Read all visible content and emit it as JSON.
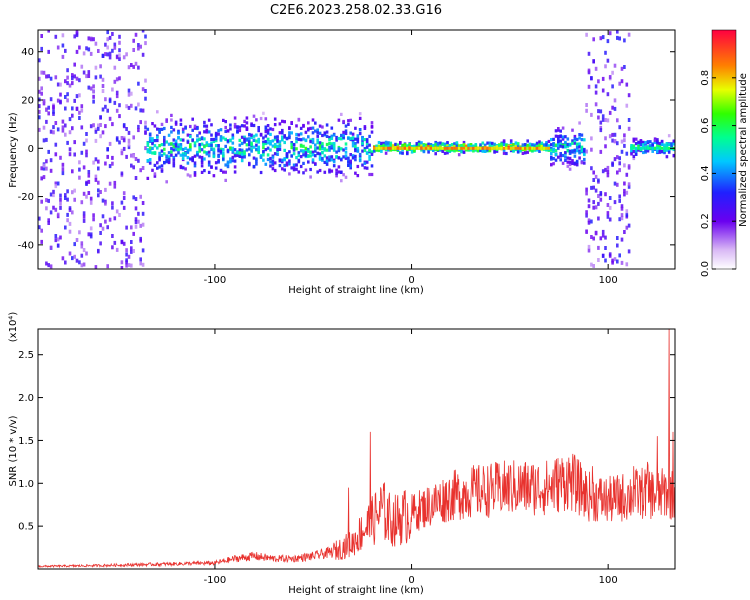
{
  "title": "C2E6.2023.258.02.33.G16",
  "colors": {
    "snr_line": "#e8322e",
    "background": "#ffffff",
    "axes": "#000000"
  },
  "chart_data": [
    {
      "type": "heatmap",
      "xlabel": "Height of straight line (km)",
      "ylabel": "Frequency (Hz)",
      "xlim": [
        -190,
        134
      ],
      "ylim": [
        -50,
        49
      ],
      "xticks": [
        -100,
        0,
        100
      ],
      "xtick_labels": [
        "-100",
        "0",
        "100"
      ],
      "yticks": [
        -40,
        -20,
        0,
        20,
        40
      ],
      "ytick_labels": [
        "-40",
        "-20",
        "0",
        "20",
        "40"
      ],
      "colorbar": {
        "label": "Normalized spectral amplitude",
        "ticks": [
          0.0,
          0.2,
          0.4,
          0.6,
          0.8
        ],
        "tick_labels": [
          "0.0",
          "0.2",
          "0.4",
          "0.6",
          "0.8"
        ],
        "range": [
          0,
          1
        ],
        "colormap": "rainbow (white-violet-blue-cyan-green-yellow-red)"
      },
      "regions": [
        {
          "x_range": [
            -190,
            -136
          ],
          "description_values": {
            "freq_spread": 49,
            "max_amp": 0.3
          }
        },
        {
          "x_range": [
            -136,
            -20
          ],
          "description_values": {
            "freq_spread": 15,
            "max_amp": 0.6
          }
        },
        {
          "x_range": [
            -20,
            70
          ],
          "description_values": {
            "freq_spread": 3,
            "max_amp": 0.9
          }
        },
        {
          "x_range": [
            70,
            88
          ],
          "description_values": {
            "freq_spread": 10,
            "max_amp": 0.6
          }
        },
        {
          "x_range": [
            88,
            110
          ],
          "description_values": {
            "freq_spread": 49,
            "max_amp": 0.3
          }
        },
        {
          "x_range": [
            110,
            134
          ],
          "description_values": {
            "freq_spread": 5,
            "max_amp": 0.6
          }
        }
      ]
    },
    {
      "type": "line",
      "xlabel": "Height of straight line (km)",
      "ylabel": "SNR (10 * v/v)",
      "y_multiplier_label": "(x10⁴)",
      "xlim": [
        -190,
        134
      ],
      "ylim": [
        0,
        2.8
      ],
      "xticks": [
        -100,
        0,
        100
      ],
      "xtick_labels": [
        "-100",
        "0",
        "100"
      ],
      "yticks": [
        0.5,
        1.0,
        1.5,
        2.0,
        2.5
      ],
      "ytick_labels": [
        "0.5",
        "1.0",
        "1.5",
        "2.0",
        "2.5"
      ],
      "series": [
        {
          "x": [
            -190,
            -160,
            -140,
            -120,
            -100,
            -90,
            -80,
            -70,
            -60,
            -50,
            -40,
            -30,
            -25,
            -20,
            -15,
            -10,
            0,
            10,
            20,
            30,
            40,
            50,
            60,
            70,
            75,
            80,
            85,
            90,
            100,
            110,
            120,
            125,
            130,
            134
          ],
          "y": [
            0.03,
            0.04,
            0.05,
            0.06,
            0.07,
            0.12,
            0.15,
            0.12,
            0.12,
            0.15,
            0.2,
            0.3,
            0.45,
            0.55,
            0.7,
            0.55,
            0.65,
            0.75,
            0.85,
            0.9,
            0.92,
            0.95,
            0.95,
            0.95,
            1.0,
            1.05,
            0.95,
            0.85,
            0.8,
            0.85,
            0.9,
            0.85,
            0.9,
            0.85
          ],
          "spikes": [
            {
              "x": -21,
              "y": 1.6
            },
            {
              "x": -32,
              "y": 0.95
            },
            {
              "x": 80,
              "y": 1.3
            },
            {
              "x": 92,
              "y": 1.2
            },
            {
              "x": 113,
              "y": 1.2
            },
            {
              "x": 120,
              "y": 1.25
            },
            {
              "x": 125,
              "y": 1.55
            },
            {
              "x": 131,
              "y": 2.8
            },
            {
              "x": 133,
              "y": 1.6
            }
          ]
        }
      ]
    }
  ]
}
